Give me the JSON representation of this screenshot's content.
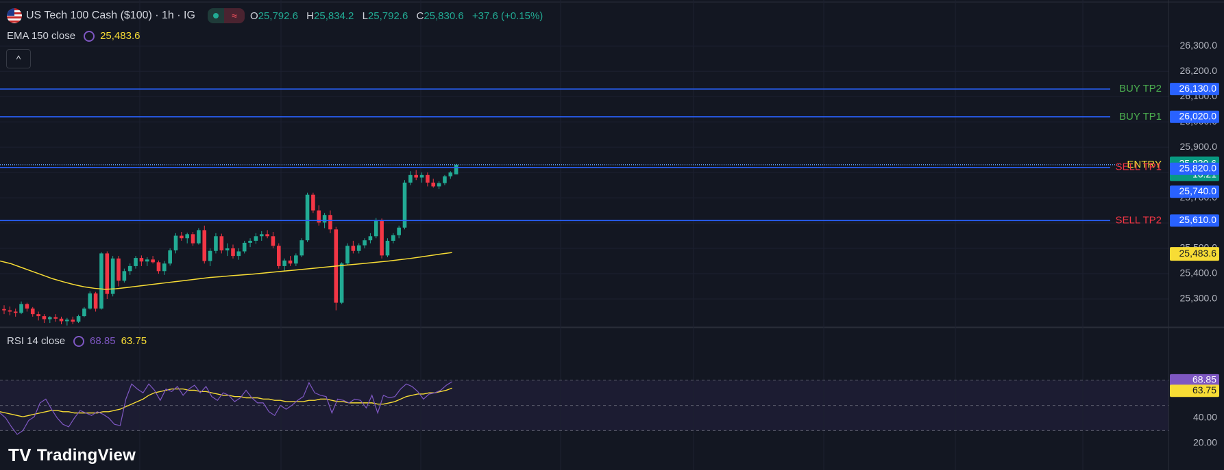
{
  "header": {
    "symbol_title": "US Tech 100 Cash ($100) · 1h · IG",
    "ohlc": {
      "o_label": "O",
      "o_value": "25,792.6",
      "h_label": "H",
      "h_value": "25,834.2",
      "l_label": "L",
      "l_value": "25,792.6",
      "c_label": "C",
      "c_value": "25,830.6",
      "change": "+37.6 (+0.15%)"
    },
    "flag_icon": "us-flag-icon",
    "pill_icon": "waves-icon",
    "pill_symbol": "≈"
  },
  "ema_legend": {
    "label": "EMA 150 close",
    "value": "25,483.6"
  },
  "rsi_legend": {
    "label": "RSI 14 close",
    "rsi_value": "68.85",
    "ma_value": "63.75"
  },
  "collapse_symbol": "^",
  "branding": {
    "logo_mark": "TV",
    "logo_text": "TradingView"
  },
  "colors": {
    "up": "#22ab94",
    "down": "#f23645",
    "level_line": "#2962ff",
    "ema": "#f7dc35",
    "rsi": "#7e57c2",
    "buy_label": "#4caf50",
    "sell_label": "#f23645",
    "entry_label": "#f7dc35"
  },
  "chart_data": [
    {
      "type": "candlestick",
      "title": "",
      "y_axis_ticks": [
        "26,300.0",
        "26,200.0",
        "26,100.0",
        "26,000.0",
        "25,900.0",
        "25,800.0",
        "25,700.0",
        "25,600.0",
        "25,500.0",
        "25,400.0",
        "25,300.0"
      ],
      "ylim": [
        25250,
        26380
      ],
      "levels": [
        {
          "name": "BUY TP2",
          "value": 26130,
          "price_label": "26,130.0",
          "style": "solid",
          "label_color": "#4caf50"
        },
        {
          "name": "BUY TP1",
          "value": 26020,
          "price_label": "26,020.0",
          "style": "solid",
          "label_color": "#4caf50"
        },
        {
          "name": "ENTRY",
          "value": 25830.6,
          "price_label": "25,830.6",
          "style": "dotted",
          "label_color": "#f7dc35",
          "countdown": "16:21"
        },
        {
          "name": "SELL TP1",
          "value": 25820,
          "price_label": "25,820.0",
          "style": "solid",
          "label_color": "#f23645"
        },
        {
          "name": "",
          "value": 25740,
          "price_label": "25,740.0",
          "style": "none",
          "label_color": "#2962ff"
        },
        {
          "name": "SELL TP2",
          "value": 25610,
          "price_label": "25,610.0",
          "style": "solid",
          "label_color": "#f23645"
        }
      ],
      "ema_150": {
        "name": "EMA 150 close",
        "last_label": "25,483.6",
        "values": [
          25450,
          25440,
          25425,
          25410,
          25395,
          25380,
          25368,
          25357,
          25348,
          25342,
          25338,
          25340,
          25345,
          25350,
          25355,
          25360,
          25365,
          25370,
          25375,
          25380,
          25385,
          25388,
          25392,
          25395,
          25398,
          25402,
          25406,
          25410,
          25414,
          25418,
          25422,
          25426,
          25430,
          25434,
          25438,
          25442,
          25446,
          25450,
          25455,
          25460,
          25466,
          25472,
          25478,
          25483.6
        ]
      },
      "candles": [
        [
          25260,
          25275,
          25240,
          25255
        ],
        [
          25255,
          25270,
          25235,
          25250
        ],
        [
          25250,
          25262,
          25230,
          25245
        ],
        [
          25245,
          25290,
          25240,
          25280
        ],
        [
          25280,
          25285,
          25250,
          25262
        ],
        [
          25262,
          25268,
          25230,
          25240
        ],
        [
          25240,
          25250,
          25215,
          25232
        ],
        [
          25232,
          25240,
          25205,
          25220
        ],
        [
          25220,
          25232,
          25205,
          25228
        ],
        [
          25228,
          25240,
          25210,
          25222
        ],
        [
          25222,
          25230,
          25200,
          25212
        ],
        [
          25212,
          25225,
          25195,
          25218
        ],
        [
          25218,
          25230,
          25200,
          25210
        ],
        [
          25210,
          25238,
          25205,
          25232
        ],
        [
          25232,
          25268,
          25228,
          25262
        ],
        [
          25262,
          25330,
          25258,
          25322
        ],
        [
          25322,
          25328,
          25250,
          25262
        ],
        [
          25262,
          25485,
          25258,
          25480
        ],
        [
          25480,
          25488,
          25300,
          25320
        ],
        [
          25320,
          25470,
          25310,
          25460
        ],
        [
          25460,
          25470,
          25350,
          25372
        ],
        [
          25372,
          25420,
          25365,
          25410
        ],
        [
          25410,
          25440,
          25395,
          25430
        ],
        [
          25430,
          25470,
          25420,
          25462
        ],
        [
          25462,
          25472,
          25430,
          25448
        ],
        [
          25448,
          25465,
          25430,
          25456
        ],
        [
          25456,
          25470,
          25440,
          25445
        ],
        [
          25445,
          25452,
          25400,
          25410
        ],
        [
          25410,
          25450,
          25395,
          25440
        ],
        [
          25440,
          25500,
          25432,
          25492
        ],
        [
          25492,
          25560,
          25480,
          25550
        ],
        [
          25550,
          25565,
          25530,
          25540
        ],
        [
          25540,
          25562,
          25520,
          25556
        ],
        [
          25556,
          25565,
          25510,
          25520
        ],
        [
          25520,
          25580,
          25515,
          25572
        ],
        [
          25572,
          25590,
          25440,
          25450
        ],
        [
          25450,
          25500,
          25430,
          25490
        ],
        [
          25490,
          25560,
          25480,
          25548
        ],
        [
          25548,
          25558,
          25480,
          25492
        ],
        [
          25492,
          25520,
          25470,
          25500
        ],
        [
          25500,
          25515,
          25460,
          25470
        ],
        [
          25470,
          25500,
          25455,
          25488
        ],
        [
          25488,
          25530,
          25480,
          25522
        ],
        [
          25522,
          25540,
          25505,
          25530
        ],
        [
          25530,
          25560,
          25518,
          25548
        ],
        [
          25548,
          25568,
          25530,
          25556
        ],
        [
          25556,
          25572,
          25540,
          25548
        ],
        [
          25548,
          25565,
          25500,
          25510
        ],
        [
          25510,
          25520,
          25420,
          25430
        ],
        [
          25430,
          25460,
          25410,
          25452
        ],
        [
          25452,
          25470,
          25430,
          25440
        ],
        [
          25440,
          25480,
          25430,
          25472
        ],
        [
          25472,
          25540,
          25465,
          25532
        ],
        [
          25532,
          25720,
          25525,
          25712
        ],
        [
          25712,
          25720,
          25640,
          25650
        ],
        [
          25650,
          25670,
          25590,
          25602
        ],
        [
          25602,
          25640,
          25580,
          25632
        ],
        [
          25632,
          25650,
          25560,
          25575
        ],
        [
          25575,
          25585,
          25255,
          25285
        ],
        [
          25285,
          25445,
          25280,
          25440
        ],
        [
          25440,
          25520,
          25435,
          25510
        ],
        [
          25510,
          25530,
          25480,
          25490
        ],
        [
          25490,
          25520,
          25480,
          25512
        ],
        [
          25512,
          25540,
          25500,
          25532
        ],
        [
          25532,
          25560,
          25520,
          25548
        ],
        [
          25548,
          25620,
          25540,
          25612
        ],
        [
          25612,
          25618,
          25460,
          25472
        ],
        [
          25472,
          25540,
          25465,
          25530
        ],
        [
          25530,
          25560,
          25520,
          25552
        ],
        [
          25552,
          25590,
          25540,
          25582
        ],
        [
          25582,
          25770,
          25575,
          25760
        ],
        [
          25760,
          25805,
          25750,
          25790
        ],
        [
          25790,
          25810,
          25770,
          25780
        ],
        [
          25780,
          25800,
          25760,
          25790
        ],
        [
          25790,
          25800,
          25745,
          25760
        ],
        [
          25760,
          25775,
          25740,
          25745
        ],
        [
          25745,
          25765,
          25735,
          25758
        ],
        [
          25758,
          25790,
          25750,
          25785
        ],
        [
          25785,
          25805,
          25775,
          25800
        ],
        [
          25792.6,
          25834.2,
          25792.6,
          25830.6
        ]
      ]
    },
    {
      "type": "line",
      "title": "",
      "y_axis_ticks": [
        "60.00",
        "40.00",
        "20.00"
      ],
      "ylim": [
        17,
        77
      ],
      "reference_lines": [
        70,
        50,
        30
      ],
      "series": [
        {
          "name": "RSI 14 close",
          "last_label": "68.85",
          "values": [
            44,
            40,
            33,
            27,
            30,
            38,
            41,
            52,
            55,
            47,
            40,
            35,
            33,
            40,
            46,
            44,
            42,
            45,
            43,
            40,
            35,
            34,
            55,
            67,
            63,
            60,
            67,
            62,
            54,
            63,
            61,
            65,
            58,
            63,
            66,
            60,
            65,
            57,
            54,
            60,
            58,
            53,
            56,
            62,
            56,
            52,
            52,
            45,
            42,
            50,
            47,
            50,
            54,
            57,
            68,
            60,
            58,
            57,
            44,
            55,
            54,
            52,
            55,
            54,
            48,
            58,
            44,
            58,
            56,
            57,
            63,
            67,
            65,
            61,
            55,
            59,
            60,
            62,
            66,
            68.85
          ]
        },
        {
          "name": "RSI MA",
          "last_label": "63.75",
          "values": [
            45,
            44,
            43,
            42,
            41,
            42,
            43,
            44,
            45,
            46,
            46,
            45,
            45,
            44,
            44,
            44,
            44,
            44,
            45,
            45,
            46,
            47,
            49,
            51,
            53,
            55,
            58,
            60,
            61,
            62,
            63,
            63,
            63,
            62,
            62,
            61,
            61,
            60,
            59,
            58,
            58,
            57,
            57,
            56,
            56,
            56,
            55,
            55,
            54,
            54,
            53,
            53,
            53,
            53,
            54,
            54,
            55,
            55,
            54,
            53,
            53,
            52,
            52,
            52,
            52,
            52,
            51,
            51,
            52,
            53,
            55,
            57,
            58,
            59,
            59,
            60,
            60,
            61,
            62,
            63.75
          ]
        }
      ],
      "axis_labels": {
        "last_rsi": "68.85",
        "last_ma": "63.75"
      }
    }
  ]
}
